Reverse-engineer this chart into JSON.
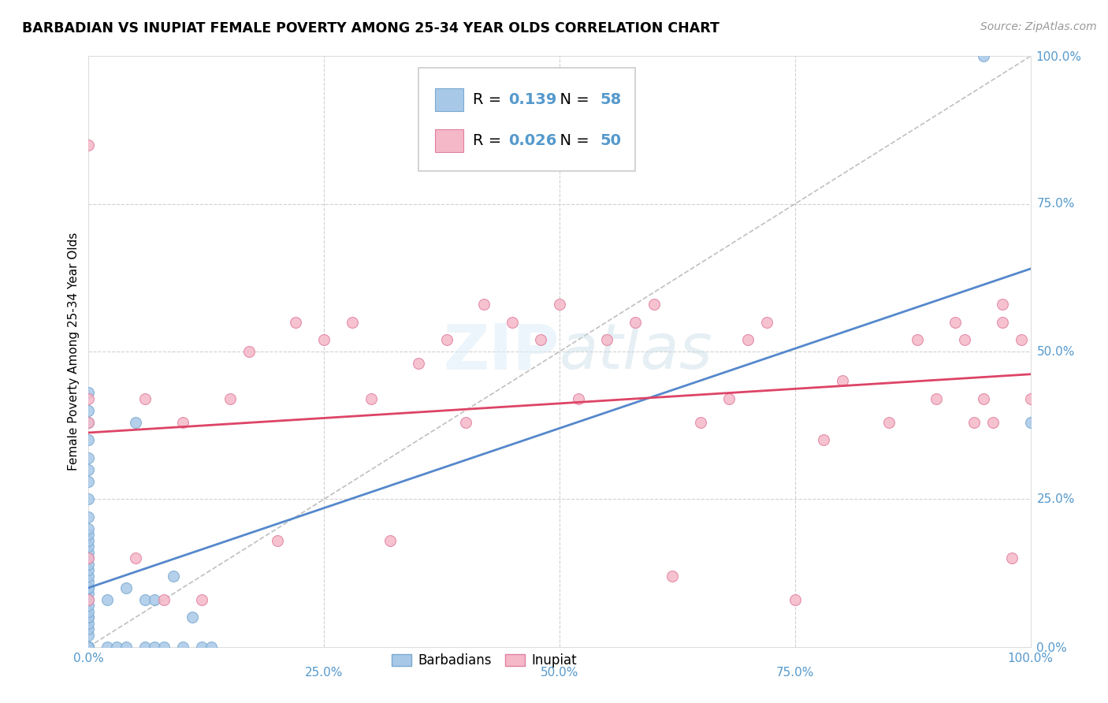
{
  "title": "BARBADIAN VS INUPIAT FEMALE POVERTY AMONG 25-34 YEAR OLDS CORRELATION CHART",
  "source": "Source: ZipAtlas.com",
  "ylabel": "Female Poverty Among 25-34 Year Olds",
  "xlim": [
    0,
    1.0
  ],
  "ylim": [
    0,
    1.0
  ],
  "barbadian_color": "#a8c8e8",
  "inupiat_color": "#f5b8c8",
  "barbadian_edge": "#7aaad0",
  "inupiat_edge": "#e080a0",
  "regression_barbadian_color": "#5588cc",
  "regression_inupiat_color": "#dd4466",
  "diagonal_color": "#b0b0b0",
  "R_barbadian": 0.139,
  "N_barbadian": 58,
  "R_inupiat": 0.026,
  "N_inupiat": 50,
  "legend_label_1": "Barbadians",
  "legend_label_2": "Inupiat",
  "marker_size": 100,
  "background_color": "#ffffff",
  "grid_color": "#cccccc",
  "tick_color": "#5599cc",
  "barbadian_x": [
    0.0,
    0.0,
    0.0,
    0.0,
    0.0,
    0.0,
    0.0,
    0.0,
    0.0,
    0.0,
    0.0,
    0.0,
    0.0,
    0.0,
    0.0,
    0.0,
    0.0,
    0.0,
    0.0,
    0.0,
    0.0,
    0.0,
    0.0,
    0.0,
    0.0,
    0.0,
    0.0,
    0.0,
    0.0,
    0.0,
    0.0,
    0.0,
    0.0,
    0.0,
    0.0,
    0.0,
    0.0,
    0.0,
    0.0,
    0.0,
    0.02,
    0.02,
    0.03,
    0.04,
    0.04,
    0.05,
    0.06,
    0.06,
    0.07,
    0.07,
    0.08,
    0.09,
    0.1,
    0.11,
    0.12,
    0.13,
    0.95,
    1.0
  ],
  "barbadian_y": [
    0.0,
    0.0,
    0.0,
    0.0,
    0.0,
    0.0,
    0.0,
    0.0,
    0.0,
    0.0,
    0.02,
    0.03,
    0.04,
    0.05,
    0.05,
    0.06,
    0.07,
    0.08,
    0.09,
    0.1,
    0.1,
    0.11,
    0.12,
    0.13,
    0.14,
    0.15,
    0.16,
    0.17,
    0.18,
    0.19,
    0.2,
    0.22,
    0.25,
    0.28,
    0.3,
    0.32,
    0.35,
    0.38,
    0.4,
    0.43,
    0.0,
    0.08,
    0.0,
    0.0,
    0.1,
    0.38,
    0.0,
    0.08,
    0.0,
    0.08,
    0.0,
    0.12,
    0.0,
    0.05,
    0.0,
    0.0,
    1.0,
    0.38
  ],
  "inupiat_x": [
    0.0,
    0.0,
    0.0,
    0.0,
    0.0,
    0.05,
    0.06,
    0.08,
    0.1,
    0.12,
    0.15,
    0.17,
    0.2,
    0.22,
    0.25,
    0.28,
    0.3,
    0.32,
    0.35,
    0.38,
    0.4,
    0.42,
    0.45,
    0.48,
    0.5,
    0.52,
    0.55,
    0.58,
    0.6,
    0.62,
    0.65,
    0.68,
    0.7,
    0.72,
    0.75,
    0.78,
    0.8,
    0.85,
    0.88,
    0.9,
    0.92,
    0.93,
    0.94,
    0.95,
    0.96,
    0.97,
    0.97,
    0.98,
    0.99,
    1.0
  ],
  "inupiat_y": [
    0.85,
    0.42,
    0.38,
    0.15,
    0.08,
    0.15,
    0.42,
    0.08,
    0.38,
    0.08,
    0.42,
    0.5,
    0.18,
    0.55,
    0.52,
    0.55,
    0.42,
    0.18,
    0.48,
    0.52,
    0.38,
    0.58,
    0.55,
    0.52,
    0.58,
    0.42,
    0.52,
    0.55,
    0.58,
    0.12,
    0.38,
    0.42,
    0.52,
    0.55,
    0.08,
    0.35,
    0.45,
    0.38,
    0.52,
    0.42,
    0.55,
    0.52,
    0.38,
    0.42,
    0.38,
    0.58,
    0.55,
    0.15,
    0.52,
    0.42
  ]
}
